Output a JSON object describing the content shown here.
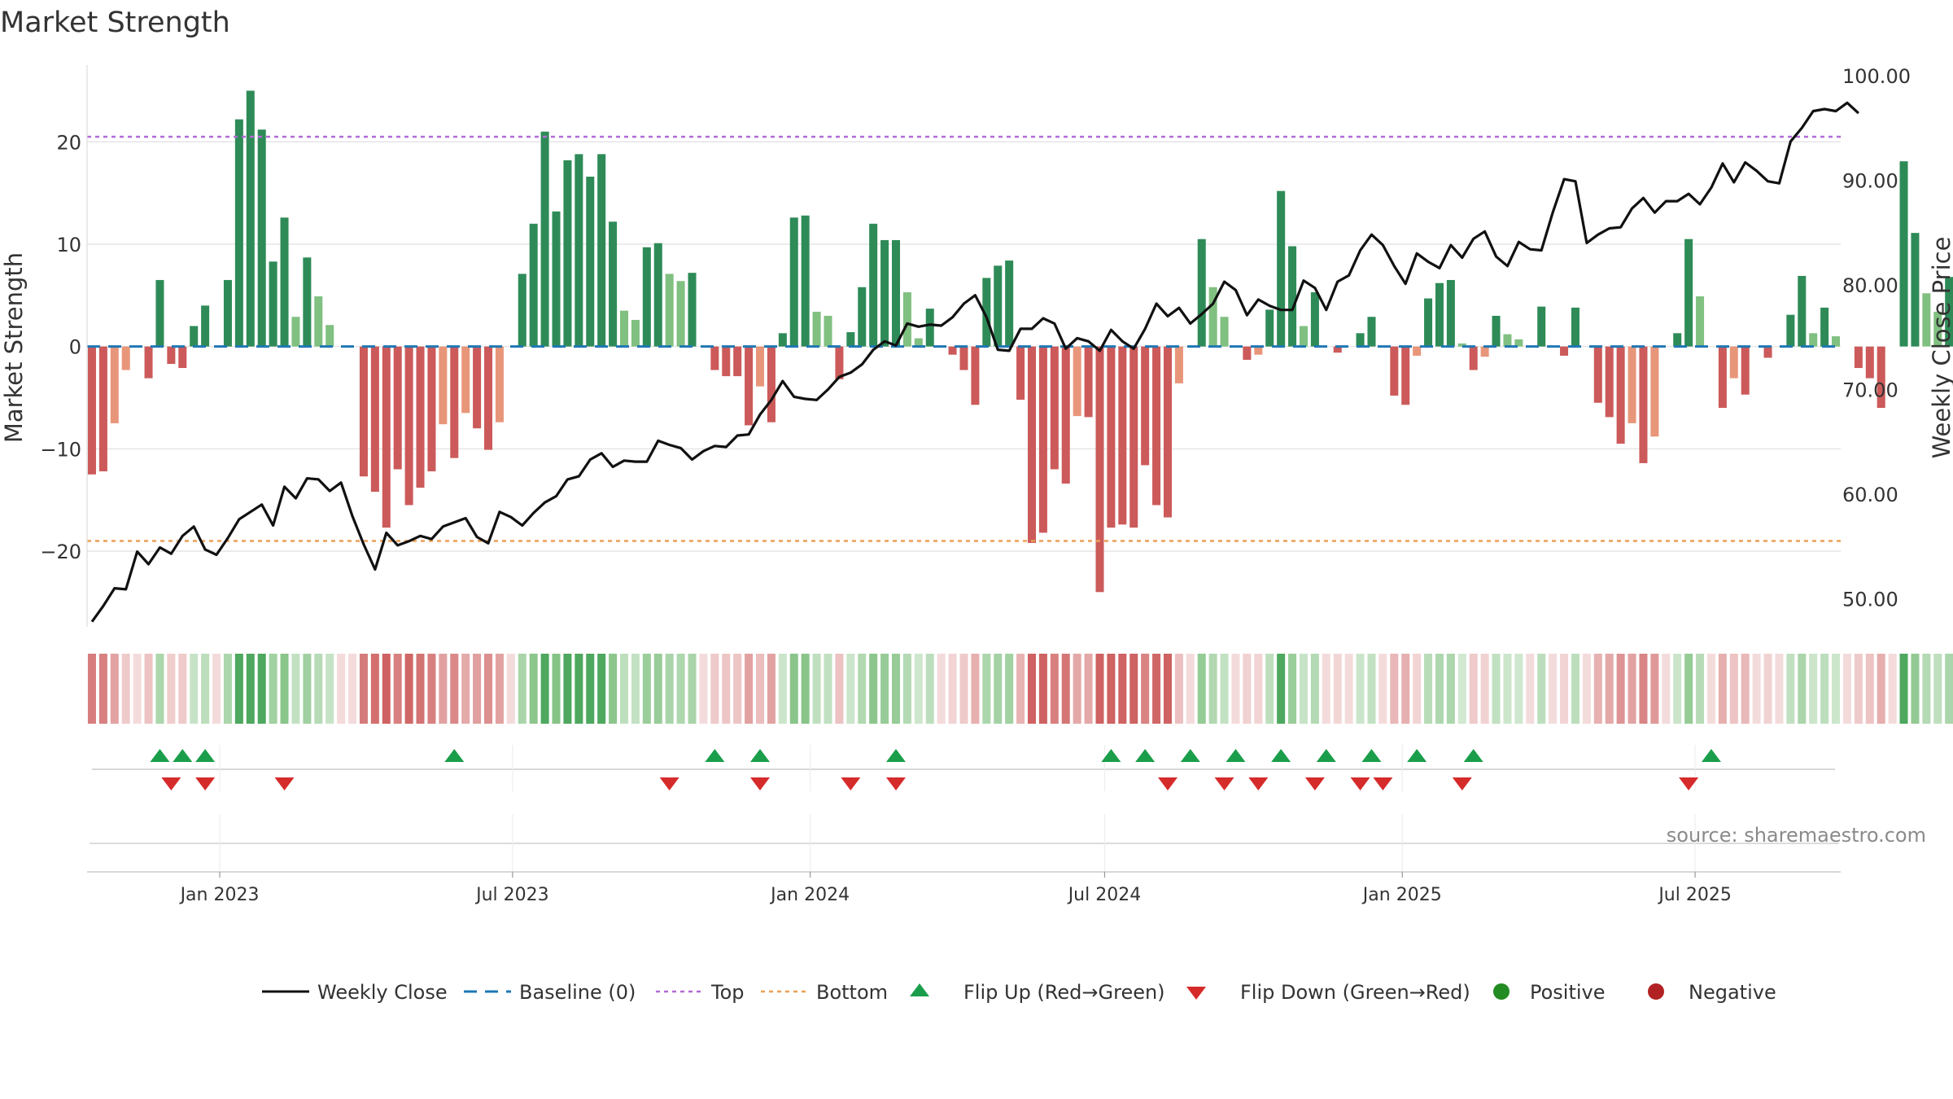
{
  "chart_data": {
    "type": "bar",
    "title": "Market Strength",
    "ylabel_left": "Market Strength",
    "ylabel_right": "Weekly Close Price",
    "source": "source: sharemaestro.com",
    "y_left_ticks": [
      20,
      10,
      0,
      -10,
      -20
    ],
    "y_left_tick_labels": [
      "20",
      "10",
      "0",
      "−10",
      "−20"
    ],
    "y_right_ticks": [
      100,
      90,
      80,
      70,
      60,
      50
    ],
    "y_right_tick_labels": [
      "100.00",
      "90.00",
      "80.00",
      "70.00",
      "60.00",
      "50.00"
    ],
    "x_range": [
      "2022-10-14",
      "2025-09-26"
    ],
    "x_ticks": [
      {
        "date": "2023-01-01",
        "label": "Jan 2023"
      },
      {
        "date": "2023-07-01",
        "label": "Jul 2023"
      },
      {
        "date": "2024-01-01",
        "label": "Jan 2024"
      },
      {
        "date": "2024-07-01",
        "label": "Jul 2024"
      },
      {
        "date": "2025-01-01",
        "label": "Jan 2025"
      },
      {
        "date": "2025-07-01",
        "label": "Jul 2025"
      }
    ],
    "ylim_left": [
      -27,
      27.5
    ],
    "ylim_right": [
      47.7,
      101
    ],
    "top_level": 20.5,
    "bottom_level": -19,
    "start_date": "2022-10-14",
    "interval_days": 7,
    "strength": [
      -12.5,
      -12.2,
      -7.5,
      -2.3,
      0,
      -3.1,
      6.5,
      -1.7,
      -2.1,
      2,
      4,
      0,
      6.5,
      22.2,
      25,
      21.2,
      8.3,
      12.6,
      2.9,
      8.7,
      4.9,
      2.1,
      0,
      0,
      -12.7,
      -14.2,
      -17.7,
      -12,
      -15.5,
      -13.8,
      -12.2,
      -7.6,
      -10.9,
      -6.5,
      -8,
      -10.1,
      -7.4,
      0,
      7.1,
      12,
      21,
      13.2,
      18.2,
      18.8,
      16.6,
      18.8,
      12.2,
      3.5,
      2.6,
      9.7,
      10.1,
      7.1,
      6.4,
      7.2,
      0,
      -2.3,
      -2.9,
      -2.9,
      -7.7,
      -3.9,
      -7.4,
      1.3,
      12.6,
      12.8,
      3.4,
      3,
      -3.2,
      1.4,
      5.8,
      12,
      10.4,
      10.4,
      5.3,
      0.8,
      3.7,
      0,
      -0.8,
      -2.3,
      -5.7,
      6.7,
      7.9,
      8.4,
      -5.2,
      -19.2,
      -18.2,
      -12,
      -13.4,
      -6.8,
      -6.9,
      -24,
      -17.7,
      -17.4,
      -17.7,
      -11.6,
      -15.5,
      -16.7,
      -3.6,
      0,
      10.5,
      5.8,
      2.9,
      0,
      -1.3,
      -0.8,
      3.6,
      15.2,
      9.8,
      2,
      5.3,
      0,
      -0.6,
      0,
      1.3,
      2.9,
      0,
      -4.8,
      -5.7,
      -0.9,
      4.7,
      6.2,
      6.5,
      0.3,
      -2.3,
      -1,
      3,
      1.2,
      0.7,
      0,
      3.9,
      0,
      -0.9,
      3.8,
      0,
      -5.5,
      -6.9,
      -9.5,
      -7.5,
      -11.4,
      -8.8,
      0,
      1.3,
      10.5,
      4.9,
      0,
      -6,
      -3.1,
      -4.7,
      0,
      -1.1,
      0,
      3.1,
      6.9,
      1.3,
      3.8,
      1,
      0,
      -2.1,
      -3.1,
      -6,
      0,
      18.1,
      11.1,
      5.2,
      3.4,
      6.8,
      5.5,
      12.7,
      10.6,
      7.3,
      8.1,
      6.7
    ],
    "weekly_close": [
      47.8,
      49.3,
      51,
      50.9,
      54.5,
      53.3,
      54.9,
      54.3,
      56,
      56.9,
      54.7,
      54.2,
      55.8,
      57.6,
      58.3,
      59,
      57,
      60.7,
      59.6,
      61.5,
      61.4,
      60.3,
      61.1,
      57.9,
      55.2,
      52.8,
      56.3,
      55.1,
      55.5,
      56,
      55.7,
      56.9,
      57.3,
      57.7,
      55.9,
      55.3,
      58.3,
      57.8,
      57,
      58.2,
      59.2,
      59.8,
      61.4,
      61.7,
      63.3,
      63.9,
      62.6,
      63.2,
      63.1,
      63.1,
      65.1,
      64.7,
      64.4,
      63.3,
      64.1,
      64.6,
      64.5,
      65.6,
      65.7,
      67.6,
      69,
      70.8,
      69.3,
      69.1,
      69,
      70,
      71.2,
      71.6,
      72.4,
      73.8,
      74.6,
      74.2,
      76.3,
      76,
      76.2,
      76.1,
      76.9,
      78.2,
      79,
      76.9,
      73.8,
      73.7,
      75.8,
      75.8,
      76.8,
      76.3,
      73.9,
      74.9,
      74.6,
      73.7,
      75.7,
      74.6,
      73.9,
      75.8,
      78.2,
      77,
      77.8,
      76.3,
      77.2,
      78.2,
      80.3,
      79.5,
      77.1,
      78.6,
      78,
      77.6,
      77.6,
      80.4,
      79.7,
      77.6,
      80.3,
      80.9,
      83.3,
      84.8,
      83.8,
      81.8,
      80.1,
      83,
      82.2,
      81.6,
      83.8,
      82.6,
      84.4,
      85.1,
      82.7,
      81.8,
      84.1,
      83.4,
      83.3,
      86.9,
      90.1,
      89.9,
      84,
      84.8,
      85.4,
      85.5,
      87.3,
      88.3,
      86.9,
      88,
      88,
      88.7,
      87.7,
      89.3,
      91.6,
      89.8,
      91.7,
      90.9,
      89.9,
      89.7,
      93.7,
      95,
      96.6,
      96.8,
      96.6,
      97.4,
      96.4
    ],
    "flip_up_dates": [
      "2022-11-25",
      "2022-12-09",
      "2022-12-23",
      "2023-05-26",
      "2023-11-03",
      "2023-12-01",
      "2024-02-23",
      "2024-07-05",
      "2024-07-26",
      "2024-08-23",
      "2024-09-20",
      "2024-10-18",
      "2024-11-15",
      "2024-12-13",
      "2025-01-10",
      "2025-02-14",
      "2025-07-11"
    ],
    "flip_down_dates": [
      "2022-12-02",
      "2022-12-23",
      "2023-02-10",
      "2023-10-06",
      "2023-12-01",
      "2024-01-26",
      "2024-02-23",
      "2024-08-09",
      "2024-09-13",
      "2024-10-04",
      "2024-11-08",
      "2024-12-06",
      "2024-12-20",
      "2025-02-07",
      "2025-06-27"
    ],
    "colors": {
      "strong_green": "#2e8b57",
      "mid_green": "#4ea85f",
      "light_green": "#80c080",
      "strong_red": "#cc5a5a",
      "light_red": "#e8967a",
      "price_line": "#111111",
      "baseline": "#1f77b4",
      "top_line": "#b36ad6",
      "bottom_line": "#eda055",
      "flip_up": "#1b9e4b",
      "flip_down": "#d62b2b",
      "positive": "#228b22",
      "negative": "#b22222",
      "grid": "#e6e6e6"
    },
    "legend": [
      {
        "label": "Weekly Close",
        "marker": "line-solid"
      },
      {
        "label": "Baseline (0)",
        "marker": "line-dashed"
      },
      {
        "label": "Top",
        "marker": "line-dotted-purple"
      },
      {
        "label": "Bottom",
        "marker": "line-dotted-orange"
      },
      {
        "label": "Flip Up (Red→Green)",
        "marker": "triangle-up"
      },
      {
        "label": "Flip Down (Green→Red)",
        "marker": "triangle-down"
      },
      {
        "label": "Positive",
        "marker": "dot-green"
      },
      {
        "label": "Negative",
        "marker": "dot-red"
      }
    ],
    "legend_position": "bottom-center"
  }
}
